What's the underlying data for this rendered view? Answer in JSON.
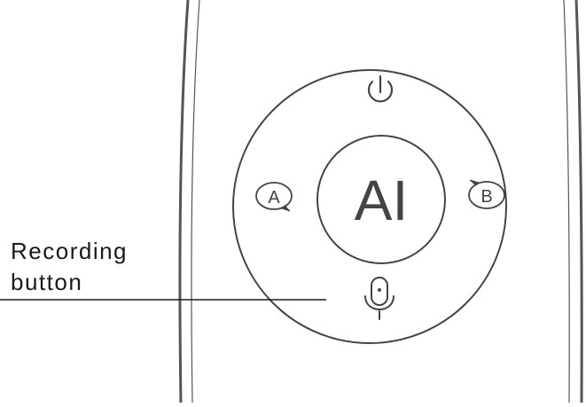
{
  "remote": {
    "center_label": "AI",
    "left_key_label": "A",
    "right_key_label": "B",
    "top_key_icon": "power-icon",
    "bottom_key_icon": "microphone-icon"
  },
  "callout": {
    "line1": "Recording",
    "line2": "button",
    "target": "microphone-icon"
  },
  "colors": {
    "outline": "#444444",
    "body_outline": "#555555",
    "leader_line": "#1a1a1a",
    "background": "#ffffff"
  }
}
